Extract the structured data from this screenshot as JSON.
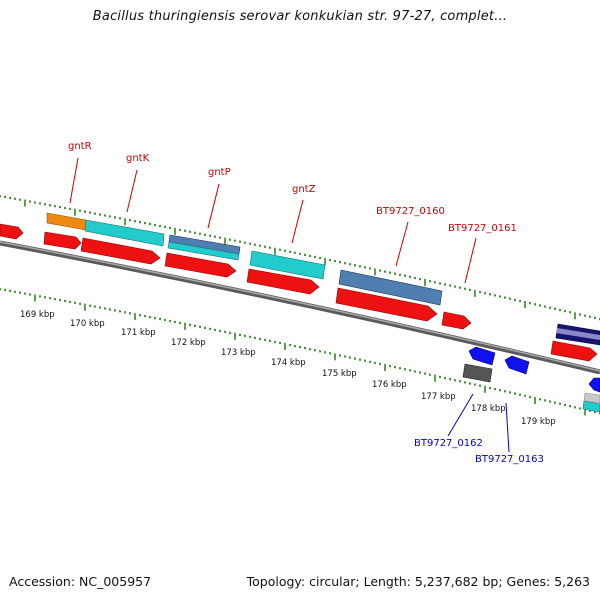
{
  "title": "Bacillus thuringiensis serovar konkukian str. 97-27, complet...",
  "footer": {
    "accession": "Accession: NC_005957",
    "summary": "Topology: circular; Length: 5,237,682 bp; Genes: 5,263"
  },
  "colors": {
    "forward_label": "#cc0000",
    "reverse_label": "#0000cc",
    "backbone": "#808080",
    "ticks": "#2e8b22",
    "cds": "#ee1111",
    "teal": "#22cccc",
    "steel": "#4f7fb0",
    "orange": "#ee8811",
    "blue": "#1111ee",
    "dark_gray": "#555555",
    "navy": "#16166e"
  },
  "kbp_labels": [
    "169 kbp",
    "170 kbp",
    "171 kbp",
    "172 kbp",
    "173 kbp",
    "174 kbp",
    "175 kbp",
    "176 kbp",
    "177 kbp",
    "178 kbp",
    "179 kbp"
  ],
  "gene_labels": {
    "gntR": "gntR",
    "gntK": "gntK",
    "gntP": "gntP",
    "gntZ": "gntZ",
    "bt0160": "BT9727_0160",
    "bt0161": "BT9727_0161",
    "bt0162": "BT9727_0162",
    "bt0163": "BT9727_0163"
  }
}
